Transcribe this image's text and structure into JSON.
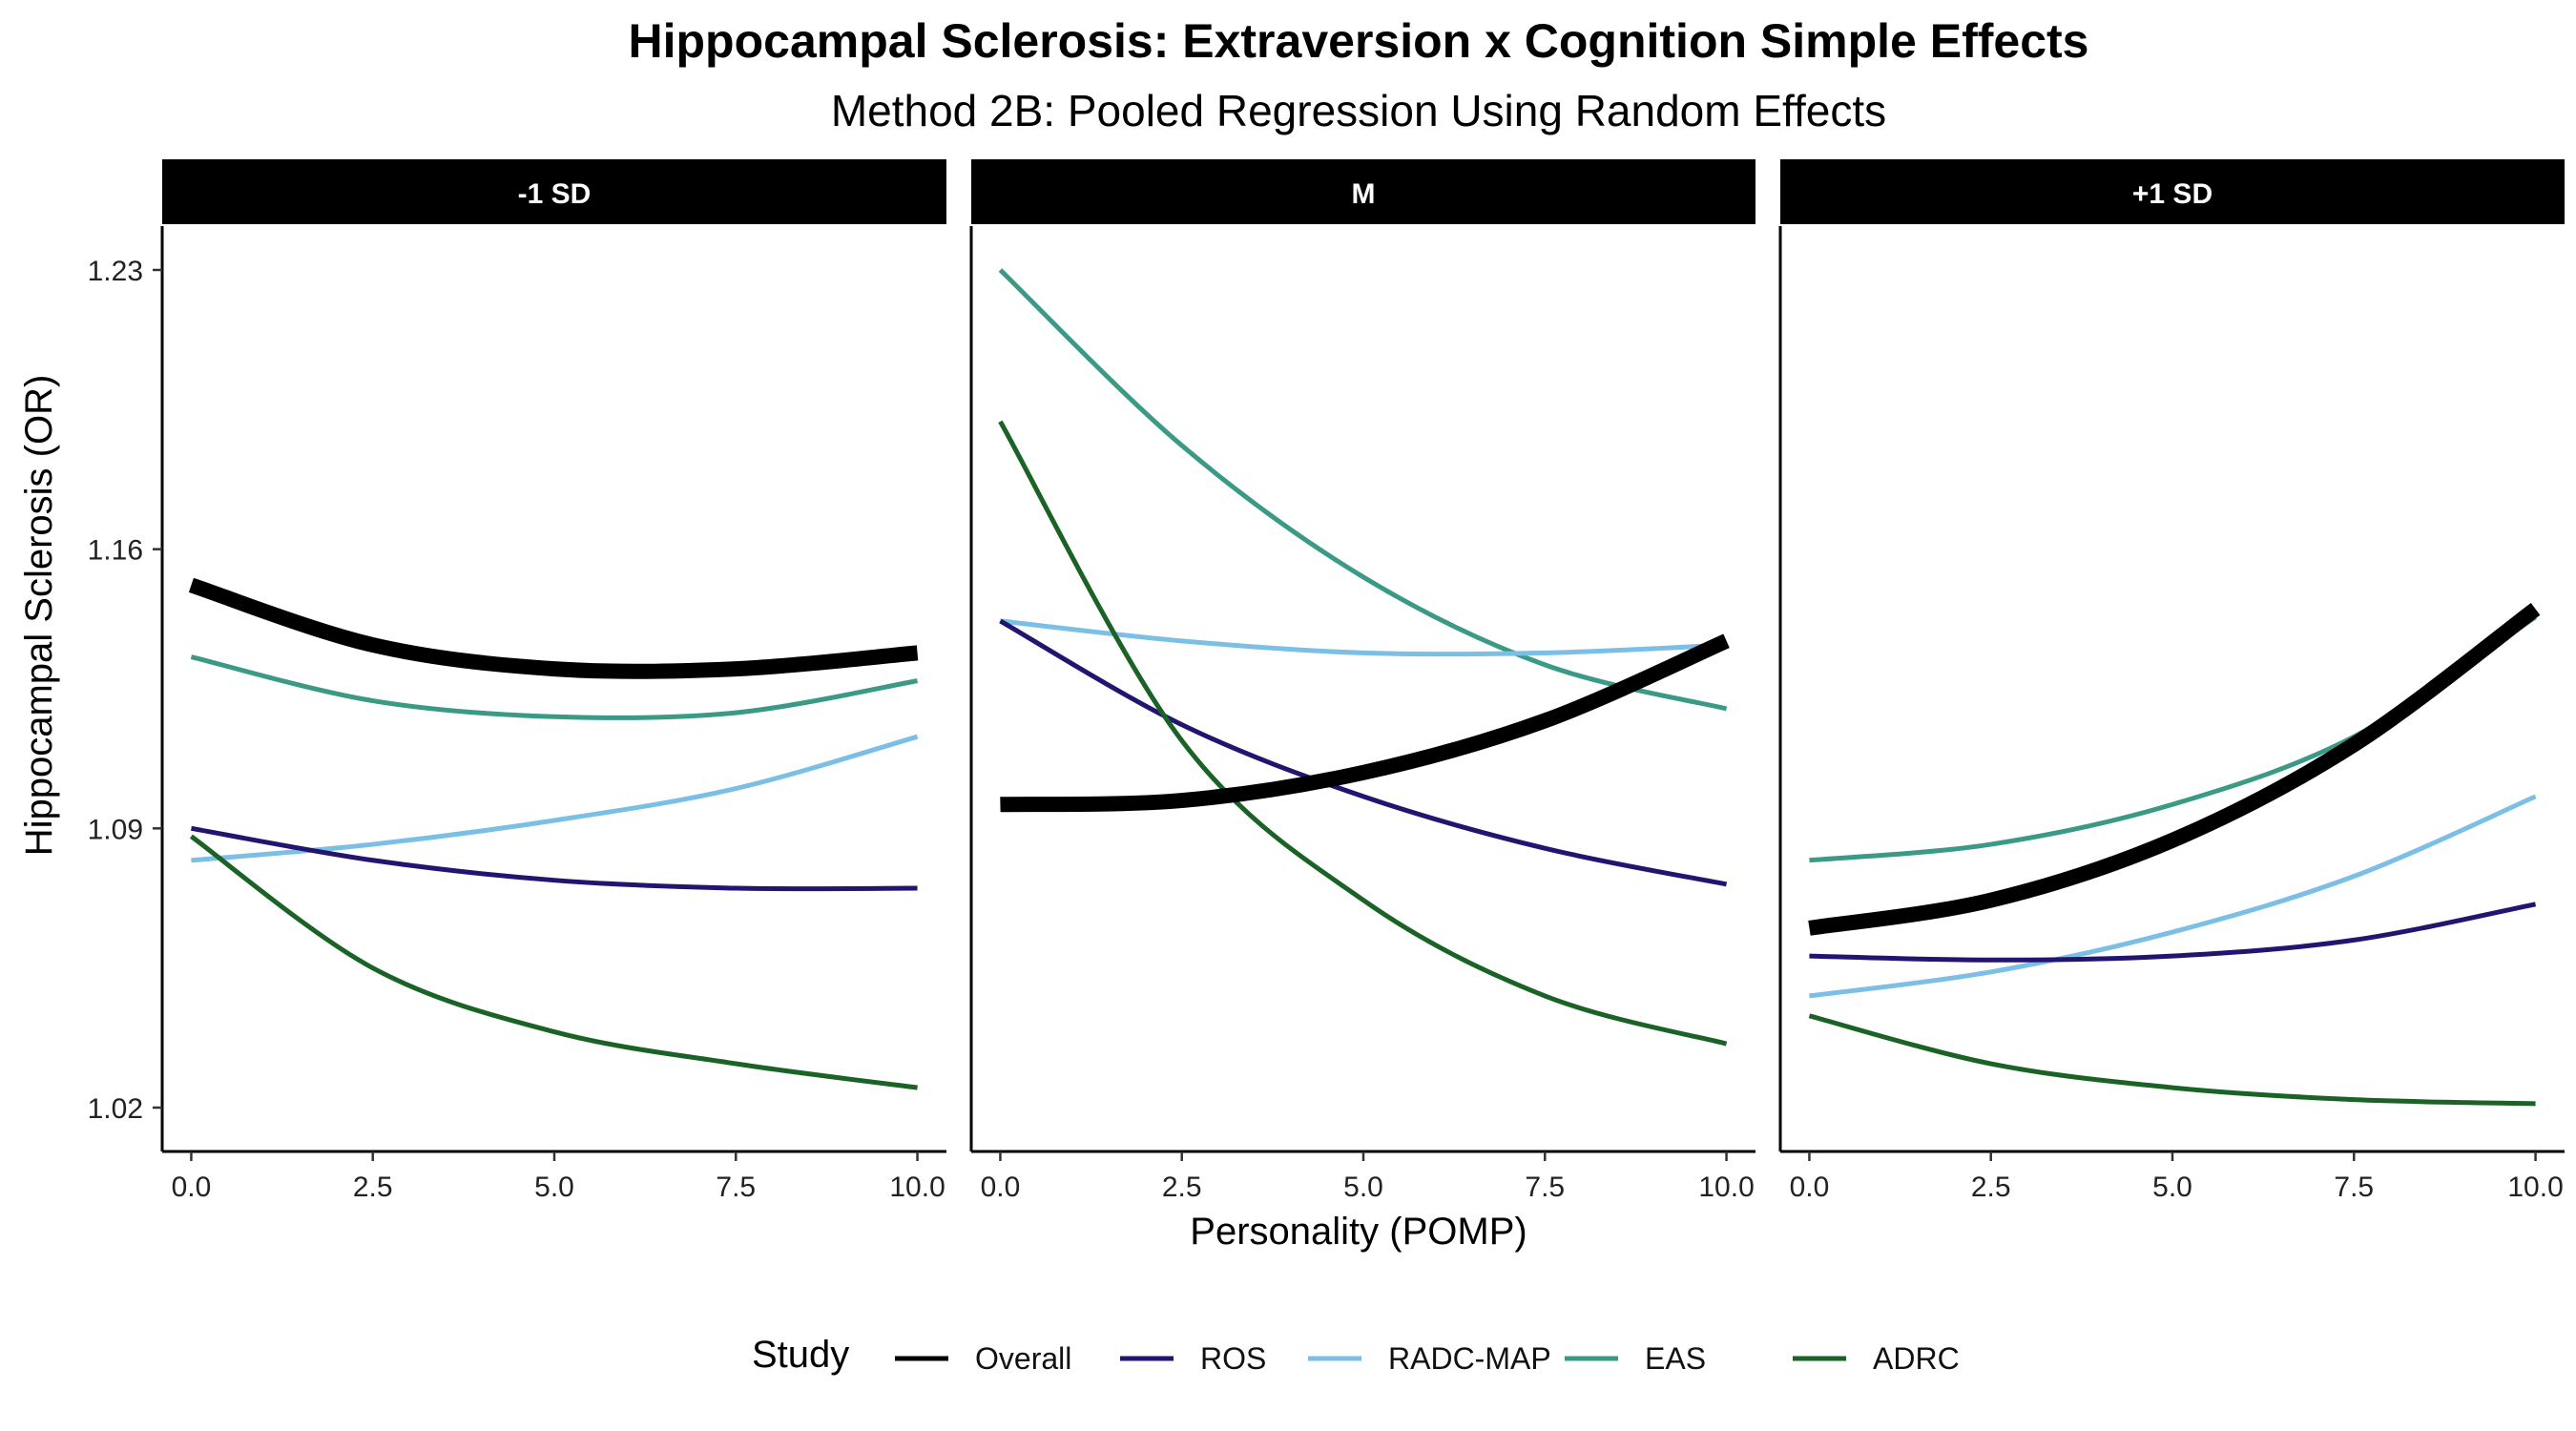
{
  "figure": {
    "title": "Hippocampal Sclerosis: Extraversion x Cognition Simple Effects",
    "subtitle": "Method 2B: Pooled Regression Using Random Effects"
  },
  "colors": {
    "Overall": "#000000",
    "ROS": "#211570",
    "RADC-MAP": "#7BBFE6",
    "EAS": "#3A9A86",
    "ADRC": "#1A6226",
    "strip_background": "#000000",
    "strip_text": "#ffffff"
  },
  "chart_data": {
    "type": "line",
    "xlabel": "Personality (POMP)",
    "ylabel": "Hippocampal Sclerosis (OR)",
    "xlim": [
      -0.4,
      10.4
    ],
    "ylim": [
      1.009,
      1.241
    ],
    "x_ticks": [
      0,
      2.5,
      5,
      7.5,
      10
    ],
    "x_tick_labels": [
      "0.0",
      "2.5",
      "5.0",
      "7.5",
      "10.0"
    ],
    "y_ticks": [
      1.02,
      1.09,
      1.16,
      1.23
    ],
    "y_tick_labels": [
      "1.02",
      "1.09",
      "1.16",
      "1.23"
    ],
    "grid": false,
    "legend": {
      "title": "Study",
      "position": "bottom",
      "entries": [
        "Overall",
        "ROS",
        "RADC-MAP",
        "EAS",
        "ADRC"
      ]
    },
    "panels": [
      {
        "label": "-1 SD",
        "series": [
          {
            "name": "Overall",
            "x": [
              0,
              2.5,
              5,
              7.5,
              10
            ],
            "y": [
              1.151,
              1.136,
              1.13,
              1.13,
              1.134
            ]
          },
          {
            "name": "ROS",
            "x": [
              0,
              2.5,
              5,
              7.5,
              10
            ],
            "y": [
              1.09,
              1.082,
              1.077,
              1.075,
              1.075
            ]
          },
          {
            "name": "RADC-MAP",
            "x": [
              0,
              2.5,
              5,
              7.5,
              10
            ],
            "y": [
              1.082,
              1.086,
              1.092,
              1.1,
              1.113
            ]
          },
          {
            "name": "EAS",
            "x": [
              0,
              2.5,
              5,
              7.5,
              10
            ],
            "y": [
              1.133,
              1.122,
              1.118,
              1.119,
              1.127
            ]
          },
          {
            "name": "ADRC",
            "x": [
              0,
              2.5,
              5,
              7.5,
              10
            ],
            "y": [
              1.088,
              1.055,
              1.039,
              1.031,
              1.025
            ]
          }
        ]
      },
      {
        "label": "M",
        "series": [
          {
            "name": "Overall",
            "x": [
              0,
              2.5,
              5,
              7.5,
              10
            ],
            "y": [
              1.096,
              1.097,
              1.104,
              1.117,
              1.137
            ]
          },
          {
            "name": "ROS",
            "x": [
              0,
              2.5,
              5,
              7.5,
              10
            ],
            "y": [
              1.142,
              1.116,
              1.098,
              1.085,
              1.076
            ]
          },
          {
            "name": "RADC-MAP",
            "x": [
              0,
              2.5,
              5,
              7.5,
              10
            ],
            "y": [
              1.142,
              1.137,
              1.134,
              1.134,
              1.136
            ]
          },
          {
            "name": "EAS",
            "x": [
              0,
              2.5,
              5,
              7.5,
              10
            ],
            "y": [
              1.23,
              1.186,
              1.153,
              1.131,
              1.12
            ]
          },
          {
            "name": "ADRC",
            "x": [
              0,
              2.5,
              5,
              7.5,
              10
            ],
            "y": [
              1.192,
              1.112,
              1.072,
              1.048,
              1.036
            ]
          }
        ]
      },
      {
        "label": "+1 SD",
        "series": [
          {
            "name": "Overall",
            "x": [
              0,
              2.5,
              5,
              7.5,
              10
            ],
            "y": [
              1.065,
              1.072,
              1.087,
              1.111,
              1.145
            ]
          },
          {
            "name": "ROS",
            "x": [
              0,
              2.5,
              5,
              7.5,
              10
            ],
            "y": [
              1.058,
              1.057,
              1.058,
              1.062,
              1.071
            ]
          },
          {
            "name": "RADC-MAP",
            "x": [
              0,
              2.5,
              5,
              7.5,
              10
            ],
            "y": [
              1.048,
              1.054,
              1.064,
              1.078,
              1.098
            ]
          },
          {
            "name": "EAS",
            "x": [
              0,
              2.5,
              5,
              7.5,
              10
            ],
            "y": [
              1.082,
              1.086,
              1.096,
              1.113,
              1.143
            ]
          },
          {
            "name": "ADRC",
            "x": [
              0,
              2.5,
              5,
              7.5,
              10
            ],
            "y": [
              1.043,
              1.031,
              1.025,
              1.022,
              1.021
            ]
          }
        ]
      }
    ]
  }
}
